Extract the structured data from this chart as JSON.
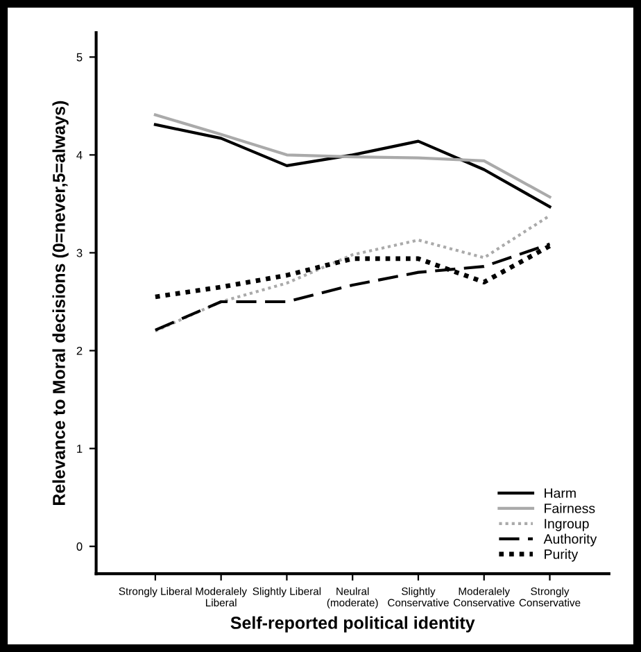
{
  "chart_data": {
    "type": "line",
    "xlabel": "Self-reported political identity",
    "ylabel": "Relevance to Moral decisions (0=never,5=always)",
    "categories": [
      "Strongly Liberal",
      "Moderalely\nLiberal",
      "Slightly Liberal",
      "Neulral\n(moderate)",
      "Slightly\nConservative",
      "Moderalely\nConservative",
      "Strongly\nConservative"
    ],
    "ylim": [
      -0.28,
      5.25
    ],
    "yticks": [
      0,
      1,
      2,
      3,
      4,
      5
    ],
    "grid": false,
    "legend": "bottom right",
    "marker": "none",
    "series": [
      {
        "name": "Harm",
        "color": "#000000",
        "line_style": "solid",
        "values": [
          4.31,
          4.17,
          3.89,
          4.0,
          4.14,
          3.85,
          3.47
        ]
      },
      {
        "name": "Fairness",
        "color": "#aaaaaa",
        "line_style": "solid",
        "values": [
          4.41,
          4.21,
          4.0,
          3.98,
          3.97,
          3.94,
          3.57
        ]
      },
      {
        "name": "Ingroup",
        "color": "#aaaaaa",
        "line_style": "dotted",
        "values": [
          2.2,
          2.5,
          2.69,
          2.98,
          3.13,
          2.95,
          3.38
        ]
      },
      {
        "name": "Authority",
        "color": "#000000",
        "line_style": "dashed",
        "values": [
          2.21,
          2.5,
          2.5,
          2.67,
          2.8,
          2.86,
          3.09
        ]
      },
      {
        "name": "Purity",
        "color": "#000000",
        "line_style": "dotted",
        "values": [
          2.55,
          2.65,
          2.77,
          2.94,
          2.94,
          2.7,
          3.07
        ]
      }
    ]
  }
}
